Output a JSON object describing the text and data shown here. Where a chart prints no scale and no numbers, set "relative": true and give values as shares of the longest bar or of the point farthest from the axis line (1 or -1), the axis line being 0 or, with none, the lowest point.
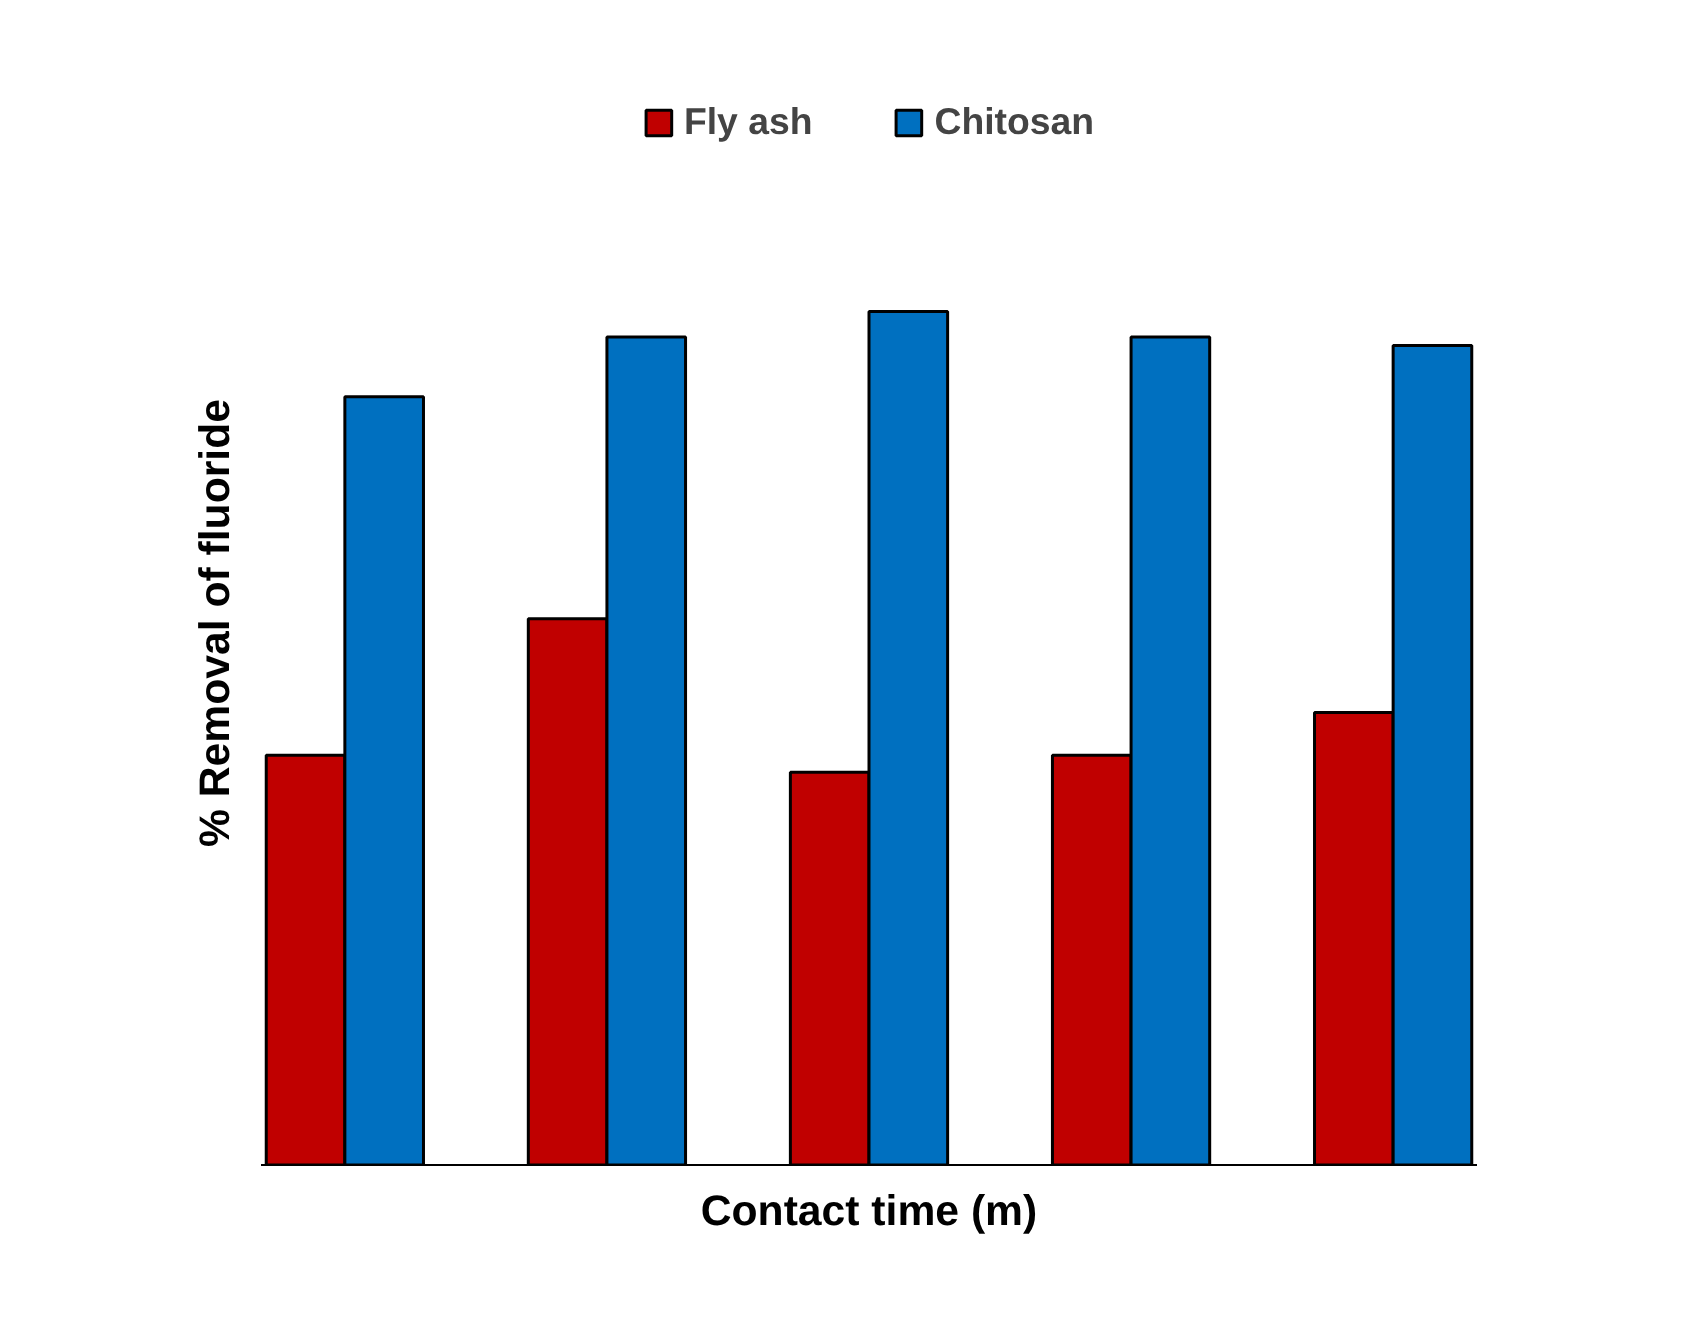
{
  "chart_data": {
    "type": "bar",
    "relative": true,
    "xlabel": "Contact time (m)",
    "ylabel": "% Removal of fluoride",
    "categories": [
      null,
      null,
      null,
      null,
      null
    ],
    "series": [
      {
        "name": "Fly ash",
        "color": "#c00000",
        "values": [
          0.48,
          0.64,
          0.46,
          0.48,
          0.53
        ]
      },
      {
        "name": "Chitosan",
        "color": "#0070c0",
        "values": [
          0.9,
          0.97,
          1,
          0.97,
          0.96
        ]
      }
    ],
    "legend": "top",
    "grid": false
  }
}
